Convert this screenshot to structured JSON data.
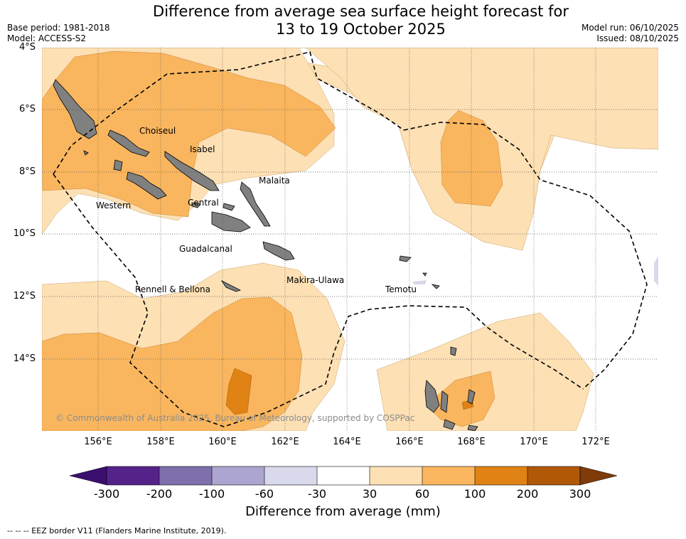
{
  "title": {
    "line1": "Difference from average sea surface height forecast for",
    "line2": "13 to 19 October 2025"
  },
  "meta": {
    "base_period": "Base period: 1981-2018",
    "model": "Model: ACCESS-S2",
    "model_run": "Model run: 06/10/2025",
    "issued": "Issued: 08/10/2025"
  },
  "axes": {
    "lat_labels": [
      "4°S",
      "6°S",
      "8°S",
      "10°S",
      "12°S",
      "14°S"
    ],
    "lon_labels": [
      "156°E",
      "158°E",
      "160°E",
      "162°E",
      "164°E",
      "166°E",
      "168°E",
      "170°E",
      "172°E"
    ]
  },
  "regions": [
    "Choiseul",
    "Isabel",
    "Malaita",
    "Western",
    "Central",
    "Guadalcanal",
    "Makira-Ulawa",
    "Rennell & Bellona",
    "Temotu"
  ],
  "copyright": "© Commonwealth of Australia 2025, Bureau of Meteorology, supported by COSPPac",
  "colorbar": {
    "ticks": [
      "-300",
      "-200",
      "-100",
      "-60",
      "-30",
      "30",
      "60",
      "100",
      "200",
      "300"
    ],
    "colors": [
      "#3b0f70",
      "#55228a",
      "#7f6fab",
      "#aba5cf",
      "#d9d9ec",
      "#ffffff",
      "#fde0b4",
      "#f9b65e",
      "#e08314",
      "#b15806",
      "#7f3b08"
    ],
    "label": "Difference from average (mm)"
  },
  "footnote": "--  --  -- EEZ border V11 (Flanders Marine Institute, 2019)."
}
